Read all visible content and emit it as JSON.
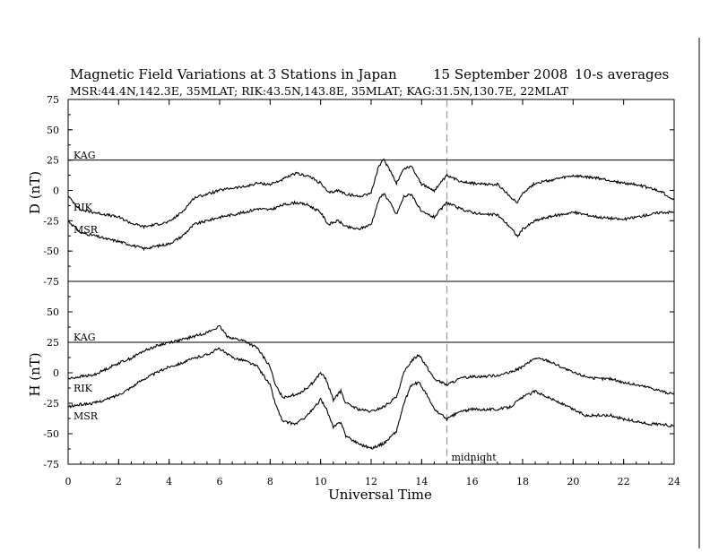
{
  "header": {
    "title": "Magnetic Field Variations at 3 Stations in Japan",
    "date": "15 September 2008",
    "averaging": "10-s averages",
    "stations": "MSR:44.4N,142.3E, 35MLAT;  RIK:43.5N,143.8E, 35MLAT;  KAG:31.5N,130.7E, 22MLAT"
  },
  "colors": {
    "line": "#000000",
    "midnight_marker": "#999999"
  },
  "chart_data": [
    {
      "type": "line",
      "panel": "D",
      "ylabel": "D (nT)",
      "xlim": [
        0,
        24
      ],
      "ylim": [
        -75,
        75
      ],
      "yticks": [
        75,
        50,
        25,
        0,
        -25,
        -50,
        -75
      ],
      "grid": false,
      "series": [
        {
          "name": "KAG",
          "x": [
            0,
            24
          ],
          "y": [
            25,
            25
          ]
        },
        {
          "name": "RIK",
          "x": [
            0,
            0.5,
            1,
            1.5,
            2,
            2.5,
            3,
            3.5,
            4,
            4.5,
            5,
            5.5,
            6,
            6.5,
            7,
            7.5,
            8,
            8.5,
            9,
            9.5,
            10,
            10.3,
            10.7,
            11,
            11.5,
            12,
            12.3,
            12.5,
            12.8,
            13,
            13.3,
            13.6,
            14,
            14.5,
            15,
            15.5,
            16,
            16.5,
            17,
            17.5,
            17.8,
            18,
            18.5,
            19,
            19.5,
            20,
            20.5,
            21,
            21.5,
            22,
            22.5,
            23,
            23.5,
            24
          ],
          "y": [
            -5,
            -16,
            -18,
            -20,
            -22,
            -27,
            -30,
            -28,
            -26,
            -18,
            -6,
            -3,
            0,
            2,
            3,
            6,
            5,
            9,
            14,
            12,
            6,
            -2,
            0,
            -3,
            -5,
            -2,
            20,
            25,
            15,
            6,
            18,
            20,
            5,
            0,
            12,
            8,
            6,
            5,
            5,
            -5,
            -10,
            -2,
            6,
            8,
            10,
            12,
            11,
            10,
            8,
            6,
            5,
            2,
            -1,
            -8
          ]
        },
        {
          "name": "MSR",
          "x": [
            0,
            0.5,
            1,
            1.5,
            2,
            2.5,
            3,
            3.5,
            4,
            4.5,
            5,
            5.5,
            6,
            6.5,
            7,
            7.5,
            8,
            8.5,
            9,
            9.5,
            10,
            10.3,
            10.7,
            11,
            11.5,
            12,
            12.3,
            12.5,
            12.8,
            13,
            13.3,
            13.6,
            14,
            14.5,
            15,
            15.5,
            16,
            16.5,
            17,
            17.5,
            17.8,
            18,
            18.5,
            19,
            19.5,
            20,
            20.5,
            21,
            21.5,
            22,
            22.5,
            23,
            23.5,
            24
          ],
          "y": [
            -25,
            -35,
            -37,
            -40,
            -42,
            -45,
            -48,
            -46,
            -44,
            -38,
            -28,
            -25,
            -22,
            -20,
            -18,
            -15,
            -16,
            -12,
            -10,
            -12,
            -18,
            -28,
            -25,
            -30,
            -32,
            -28,
            -8,
            -2,
            -12,
            -20,
            -5,
            -3,
            -18,
            -22,
            -10,
            -15,
            -18,
            -20,
            -20,
            -30,
            -38,
            -32,
            -25,
            -22,
            -20,
            -18,
            -20,
            -22,
            -23,
            -24,
            -22,
            -20,
            -18,
            -18
          ]
        }
      ],
      "annotations": [
        "KAG",
        "RIK",
        "MSR"
      ]
    },
    {
      "type": "line",
      "panel": "H",
      "ylabel": "H (nT)",
      "xlabel": "Universal Time",
      "xlim": [
        0,
        24
      ],
      "ylim": [
        -75,
        75
      ],
      "xticks": [
        0,
        2,
        4,
        6,
        8,
        10,
        12,
        14,
        16,
        18,
        20,
        22,
        24
      ],
      "yticks": [
        50,
        25,
        0,
        -25,
        -50,
        -75
      ],
      "grid": false,
      "series": [
        {
          "name": "KAG",
          "x": [
            0,
            24
          ],
          "y": [
            25,
            25
          ]
        },
        {
          "name": "RIK",
          "x": [
            0,
            0.5,
            1,
            1.5,
            2,
            2.5,
            3,
            3.5,
            4,
            4.5,
            5,
            5.5,
            6,
            6.3,
            6.6,
            7,
            7.5,
            8,
            8.2,
            8.5,
            9,
            9.3,
            9.7,
            10,
            10.2,
            10.5,
            10.8,
            11,
            11.5,
            12,
            12.5,
            13,
            13.3,
            13.6,
            13.9,
            14.2,
            14.5,
            15,
            15.5,
            16,
            16.5,
            17,
            17.5,
            18,
            18.5,
            19,
            19.5,
            20,
            20.5,
            21,
            21.5,
            22,
            22.5,
            23,
            23.5,
            24
          ],
          "y": [
            -5,
            -3,
            -2,
            3,
            8,
            12,
            18,
            22,
            25,
            27,
            30,
            33,
            38,
            30,
            28,
            26,
            20,
            5,
            -10,
            -20,
            -18,
            -15,
            -8,
            0,
            -5,
            -22,
            -15,
            -25,
            -30,
            -32,
            -28,
            -20,
            0,
            10,
            15,
            5,
            -5,
            -10,
            -5,
            -3,
            -3,
            -2,
            0,
            5,
            12,
            10,
            5,
            0,
            -3,
            -5,
            -5,
            -8,
            -10,
            -12,
            -15,
            -18
          ]
        },
        {
          "name": "MSR",
          "x": [
            0,
            0.5,
            1,
            1.5,
            2,
            2.5,
            3,
            3.5,
            4,
            4.5,
            5,
            5.5,
            6,
            6.3,
            6.6,
            7,
            7.5,
            8,
            8.2,
            8.5,
            9,
            9.3,
            9.7,
            10,
            10.2,
            10.5,
            10.8,
            11,
            11.5,
            12,
            12.5,
            13,
            13.3,
            13.6,
            13.9,
            14.2,
            14.5,
            15,
            15.5,
            16,
            16.5,
            17,
            17.5,
            18,
            18.5,
            19,
            19.5,
            20,
            20.5,
            21,
            21.5,
            22,
            22.5,
            23,
            23.5,
            24
          ],
          "y": [
            -28,
            -26,
            -25,
            -22,
            -18,
            -12,
            -5,
            0,
            5,
            8,
            12,
            15,
            20,
            15,
            12,
            10,
            5,
            -10,
            -25,
            -40,
            -42,
            -38,
            -30,
            -22,
            -28,
            -45,
            -40,
            -52,
            -58,
            -62,
            -58,
            -48,
            -25,
            -10,
            -8,
            -18,
            -30,
            -38,
            -32,
            -30,
            -30,
            -30,
            -28,
            -20,
            -15,
            -20,
            -25,
            -30,
            -35,
            -35,
            -35,
            -38,
            -40,
            -42,
            -42,
            -44
          ]
        }
      ],
      "annotations": [
        "KAG",
        "RIK",
        "MSR",
        "midnight"
      ]
    }
  ],
  "midnight": {
    "x": 15,
    "label": "midnight"
  }
}
